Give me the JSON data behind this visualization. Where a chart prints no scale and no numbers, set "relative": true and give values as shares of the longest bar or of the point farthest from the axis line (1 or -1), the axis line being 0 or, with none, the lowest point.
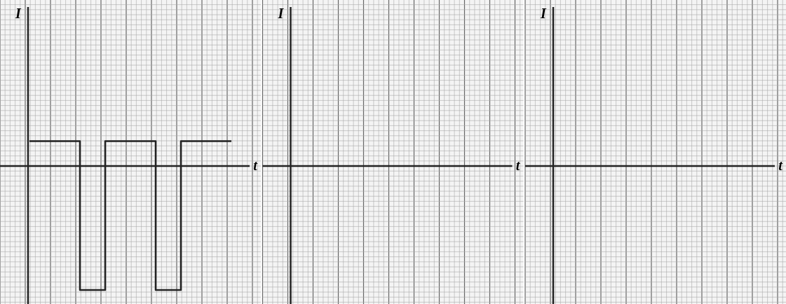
{
  "chart_data": [
    {
      "type": "step",
      "relative": true,
      "xlabel": "t",
      "ylabel": "I",
      "grid": true,
      "color": "#222222",
      "categories": [
        null,
        null,
        null,
        null,
        null,
        null,
        null,
        null,
        null
      ],
      "values": [
        0.2,
        0.2,
        -1,
        0.2,
        0.2,
        -1,
        0.2,
        0.2,
        0.2
      ]
    },
    {
      "type": "other",
      "xlabel": "t",
      "ylabel": "I"
    },
    {
      "type": "other",
      "xlabel": "t",
      "ylabel": "I"
    }
  ]
}
